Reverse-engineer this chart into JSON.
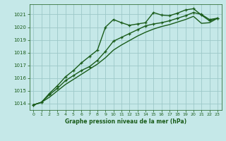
{
  "title": "Graphe pression niveau de la mer (hPa)",
  "bg_color": "#c5e8e8",
  "grid_color": "#9dc8c8",
  "line_color": "#1a5c1a",
  "ylim": [
    1013.5,
    1021.8
  ],
  "yticks": [
    1014,
    1015,
    1016,
    1017,
    1018,
    1019,
    1020,
    1021
  ],
  "xlim": [
    -0.5,
    23.5
  ],
  "xticks": [
    0,
    1,
    2,
    3,
    4,
    5,
    6,
    7,
    8,
    9,
    10,
    11,
    12,
    13,
    14,
    15,
    16,
    17,
    18,
    19,
    20,
    21,
    22,
    23
  ],
  "series1_x": [
    0,
    1,
    2,
    3,
    4,
    5,
    6,
    7,
    8,
    9,
    10,
    11,
    12,
    13,
    14,
    15,
    16,
    17,
    18,
    19,
    20,
    21,
    22,
    23
  ],
  "series1_y": [
    1013.9,
    1014.1,
    1014.8,
    1015.4,
    1016.1,
    1016.6,
    1017.2,
    1017.7,
    1018.2,
    1020.0,
    1020.6,
    1020.35,
    1020.15,
    1020.25,
    1020.35,
    1021.15,
    1020.95,
    1020.9,
    1021.1,
    1021.35,
    1021.45,
    1020.95,
    1020.5,
    1020.7
  ],
  "series2_x": [
    0,
    1,
    2,
    3,
    4,
    5,
    6,
    7,
    8,
    9,
    10,
    11,
    12,
    13,
    14,
    15,
    16,
    17,
    18,
    19,
    20,
    21,
    22,
    23
  ],
  "series2_y": [
    1013.9,
    1014.1,
    1014.7,
    1015.2,
    1015.8,
    1016.2,
    1016.6,
    1016.9,
    1017.4,
    1018.1,
    1018.9,
    1019.2,
    1019.5,
    1019.8,
    1020.1,
    1020.25,
    1020.35,
    1020.5,
    1020.7,
    1020.9,
    1021.15,
    1021.0,
    1020.6,
    1020.7
  ],
  "series3_x": [
    0,
    1,
    2,
    3,
    4,
    5,
    6,
    7,
    8,
    9,
    10,
    11,
    12,
    13,
    14,
    15,
    16,
    17,
    18,
    19,
    20,
    21,
    22,
    23
  ],
  "series3_y": [
    1013.9,
    1014.1,
    1014.5,
    1015.0,
    1015.5,
    1015.9,
    1016.3,
    1016.7,
    1017.1,
    1017.6,
    1018.2,
    1018.6,
    1018.95,
    1019.3,
    1019.6,
    1019.85,
    1020.05,
    1020.2,
    1020.4,
    1020.6,
    1020.85,
    1020.3,
    1020.35,
    1020.7
  ]
}
